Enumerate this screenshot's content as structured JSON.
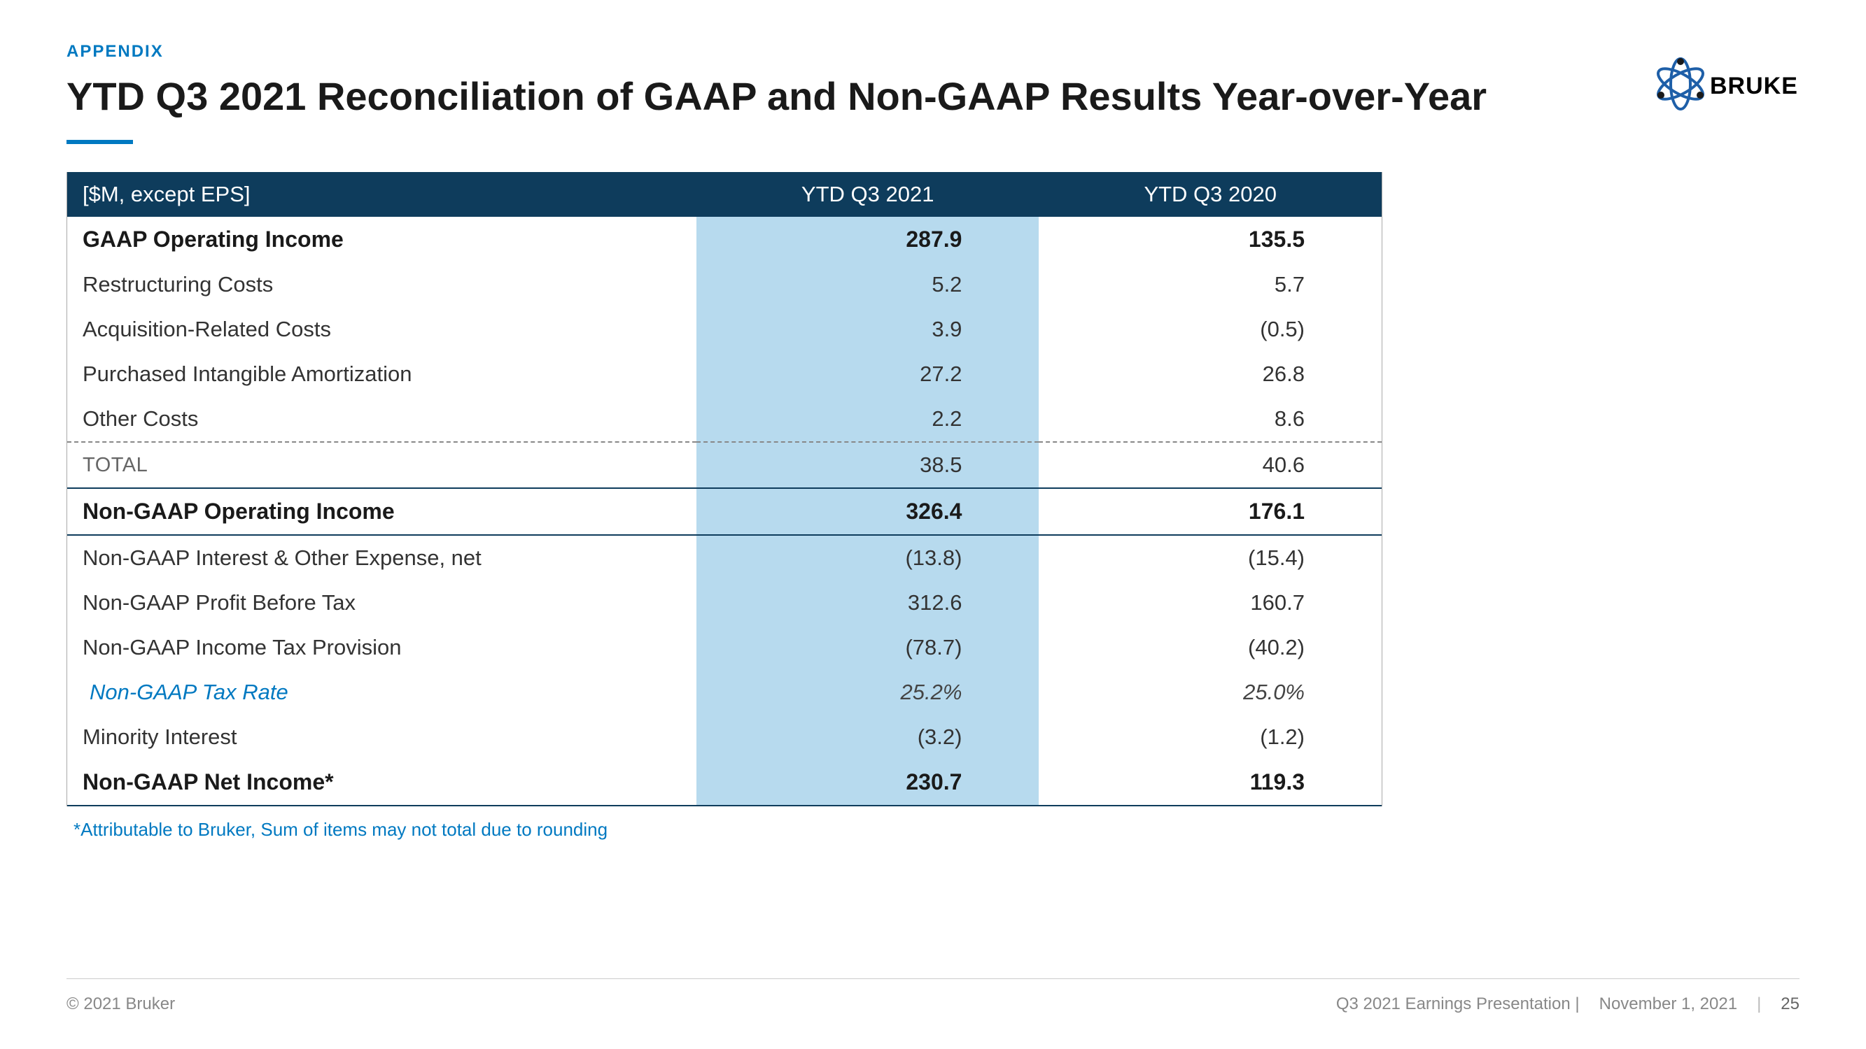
{
  "header": {
    "eyebrow": "APPENDIX",
    "title": "YTD Q3 2021 Reconciliation of GAAP and Non-GAAP Results Year-over-Year"
  },
  "logo": {
    "text": "BRUKER",
    "orbit_color": "#1e5fa8",
    "dot_color": "#1a1a1a"
  },
  "table": {
    "header_bg": "#0e3c5c",
    "highlight_bg": "#b7daee",
    "columns": {
      "label": "[$M, except EPS]",
      "col1": "YTD Q3 2021",
      "col2": "YTD Q3 2020"
    },
    "rows": [
      {
        "label": "GAAP Operating Income",
        "v1": "287.9",
        "v2": "135.5",
        "style": "bold",
        "topborder": "none"
      },
      {
        "label": "Restructuring Costs",
        "v1": "5.2",
        "v2": "5.7",
        "style": "normal"
      },
      {
        "label": "Acquisition-Related Costs",
        "v1": "3.9",
        "v2": "(0.5)",
        "style": "normal"
      },
      {
        "label": "Purchased Intangible Amortization",
        "v1": "27.2",
        "v2": "26.8",
        "style": "normal"
      },
      {
        "label": "Other Costs",
        "v1": "2.2",
        "v2": "8.6",
        "style": "normal"
      },
      {
        "label": "TOTAL",
        "v1": "38.5",
        "v2": "40.6",
        "style": "total",
        "topborder": "dashed"
      },
      {
        "label": "Non-GAAP Operating Income",
        "v1": "326.4",
        "v2": "176.1",
        "style": "bold",
        "topborder": "solid",
        "bottomborder": "solid"
      },
      {
        "label": "Non-GAAP Interest & Other Expense, net",
        "v1": "(13.8)",
        "v2": "(15.4)",
        "style": "normal"
      },
      {
        "label": "Non-GAAP Profit Before Tax",
        "v1": "312.6",
        "v2": "160.7",
        "style": "normal"
      },
      {
        "label": "Non-GAAP Income Tax Provision",
        "v1": "(78.7)",
        "v2": "(40.2)",
        "style": "normal"
      },
      {
        "label": "Non-GAAP Tax Rate",
        "v1": "25.2%",
        "v2": "25.0%",
        "style": "italic"
      },
      {
        "label": "Minority Interest",
        "v1": "(3.2)",
        "v2": "(1.2)",
        "style": "normal"
      },
      {
        "label": "Non-GAAP Net Income*",
        "v1": "230.7",
        "v2": "119.3",
        "style": "bold",
        "bottomborder": "solid"
      }
    ]
  },
  "footnote": "*Attributable to Bruker, Sum of items may not total due to rounding",
  "footer": {
    "copyright": "© 2021 Bruker",
    "presentation": "Q3 2021 Earnings Presentation |",
    "date": "November 1, 2021",
    "page": "25"
  }
}
